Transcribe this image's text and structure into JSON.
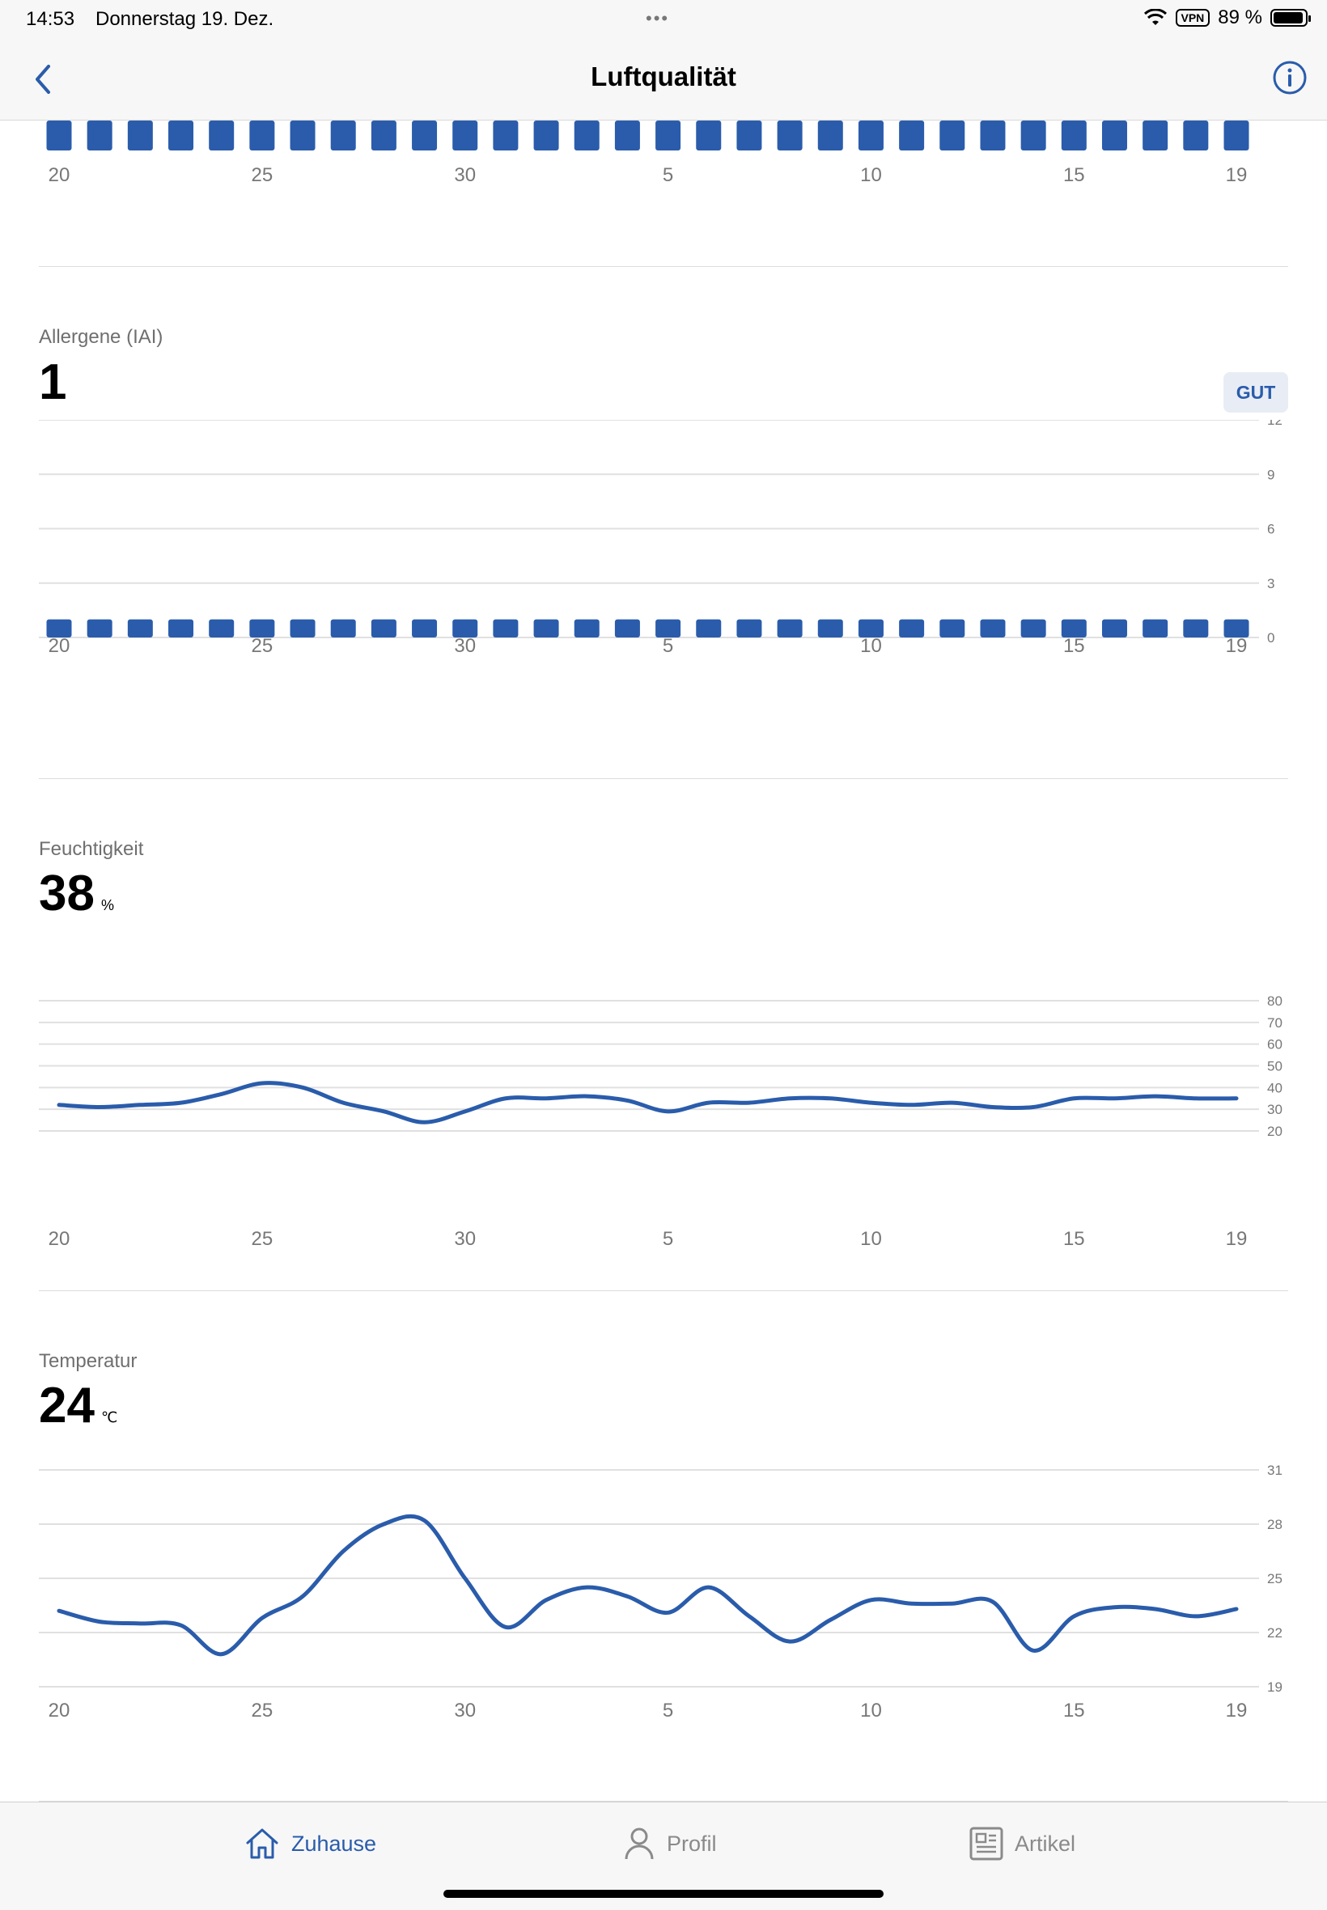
{
  "status_bar": {
    "time": "14:53",
    "date": "Donnerstag 19. Dez.",
    "vpn": "VPN",
    "battery": "89 %"
  },
  "nav": {
    "title": "Luftqualität",
    "back_icon": "chevron-left-icon",
    "info_icon": "info-circle-icon"
  },
  "colors": {
    "accent": "#2a5cab",
    "bar": "#2a5cab",
    "grid": "#e0e0e0"
  },
  "x_ticks": [
    "20",
    "25",
    "30",
    "5",
    "10",
    "15",
    "19"
  ],
  "sections": {
    "allergene": {
      "label": "Allergene (IAI)",
      "value": "1",
      "badge": "GUT"
    },
    "feuchtigkeit": {
      "label": "Feuchtigkeit",
      "value": "38",
      "unit": "%"
    },
    "temperatur": {
      "label": "Temperatur",
      "value": "24",
      "unit": "℃"
    }
  },
  "chart_data": [
    {
      "type": "bar",
      "name": "top-partial",
      "x": [
        "20",
        "21",
        "22",
        "23",
        "24",
        "25",
        "26",
        "27",
        "28",
        "29",
        "30",
        "1",
        "2",
        "3",
        "4",
        "5",
        "6",
        "7",
        "8",
        "9",
        "10",
        "11",
        "12",
        "13",
        "14",
        "15",
        "16",
        "17",
        "18",
        "19"
      ],
      "values": [
        1,
        1,
        1,
        1,
        1,
        1,
        1,
        1,
        1,
        1,
        1,
        1,
        1,
        1,
        1,
        1,
        1,
        1,
        1,
        1,
        1,
        1,
        1,
        1,
        1,
        1,
        1,
        1,
        1,
        1
      ],
      "x_tick_labels": [
        "20",
        "25",
        "30",
        "5",
        "10",
        "15",
        "19"
      ]
    },
    {
      "type": "bar",
      "name": "allergene",
      "x": [
        "20",
        "21",
        "22",
        "23",
        "24",
        "25",
        "26",
        "27",
        "28",
        "29",
        "30",
        "1",
        "2",
        "3",
        "4",
        "5",
        "6",
        "7",
        "8",
        "9",
        "10",
        "11",
        "12",
        "13",
        "14",
        "15",
        "16",
        "17",
        "18",
        "19"
      ],
      "values": [
        1,
        1,
        1,
        1,
        1,
        1,
        1,
        1,
        1,
        1,
        1,
        1,
        1,
        1,
        1,
        1,
        1,
        1,
        1,
        1,
        1,
        1,
        1,
        1,
        1,
        1,
        1,
        1,
        1,
        1
      ],
      "ylim": [
        0,
        12
      ],
      "y_ticks": [
        "0",
        "3",
        "6",
        "9",
        "12"
      ],
      "x_tick_labels": [
        "20",
        "25",
        "30",
        "5",
        "10",
        "15",
        "19"
      ],
      "grid": true
    },
    {
      "type": "line",
      "name": "feuchtigkeit",
      "x": [
        "20",
        "21",
        "22",
        "23",
        "24",
        "25",
        "26",
        "27",
        "28",
        "29",
        "30",
        "1",
        "2",
        "3",
        "4",
        "5",
        "6",
        "7",
        "8",
        "9",
        "10",
        "11",
        "12",
        "13",
        "14",
        "15",
        "16",
        "17",
        "18",
        "19"
      ],
      "values": [
        32,
        31,
        32,
        33,
        37,
        42,
        40,
        33,
        29,
        24,
        29,
        35,
        35,
        36,
        34,
        29,
        33,
        33,
        35,
        35,
        33,
        32,
        33,
        31,
        31,
        35,
        35,
        36,
        35,
        35
      ],
      "ylim": [
        20,
        80
      ],
      "y_ticks": [
        "20",
        "30",
        "40",
        "50",
        "60",
        "70",
        "80"
      ],
      "x_tick_labels": [
        "20",
        "25",
        "30",
        "5",
        "10",
        "15",
        "19"
      ],
      "grid": true
    },
    {
      "type": "line",
      "name": "temperatur",
      "x": [
        "20",
        "21",
        "22",
        "23",
        "24",
        "25",
        "26",
        "27",
        "28",
        "29",
        "30",
        "1",
        "2",
        "3",
        "4",
        "5",
        "6",
        "7",
        "8",
        "9",
        "10",
        "11",
        "12",
        "13",
        "14",
        "15",
        "16",
        "17",
        "18",
        "19"
      ],
      "values": [
        23.2,
        22.6,
        22.5,
        22.4,
        20.8,
        22.8,
        24,
        26.5,
        28,
        28.2,
        25,
        22.3,
        23.8,
        24.5,
        24,
        23.1,
        24.5,
        22.9,
        21.5,
        22.7,
        23.8,
        23.6,
        23.6,
        23.7,
        21,
        22.9,
        23.4,
        23.3,
        22.9,
        23.3
      ],
      "ylim": [
        19,
        31
      ],
      "y_ticks": [
        "19",
        "22",
        "25",
        "28",
        "31"
      ],
      "x_tick_labels": [
        "20",
        "25",
        "30",
        "5",
        "10",
        "15",
        "19"
      ],
      "grid": true
    }
  ],
  "tabs": [
    {
      "label": "Zuhause",
      "icon": "home-icon",
      "active": true
    },
    {
      "label": "Profil",
      "icon": "person-icon",
      "active": false
    },
    {
      "label": "Artikel",
      "icon": "article-icon",
      "active": false
    }
  ]
}
